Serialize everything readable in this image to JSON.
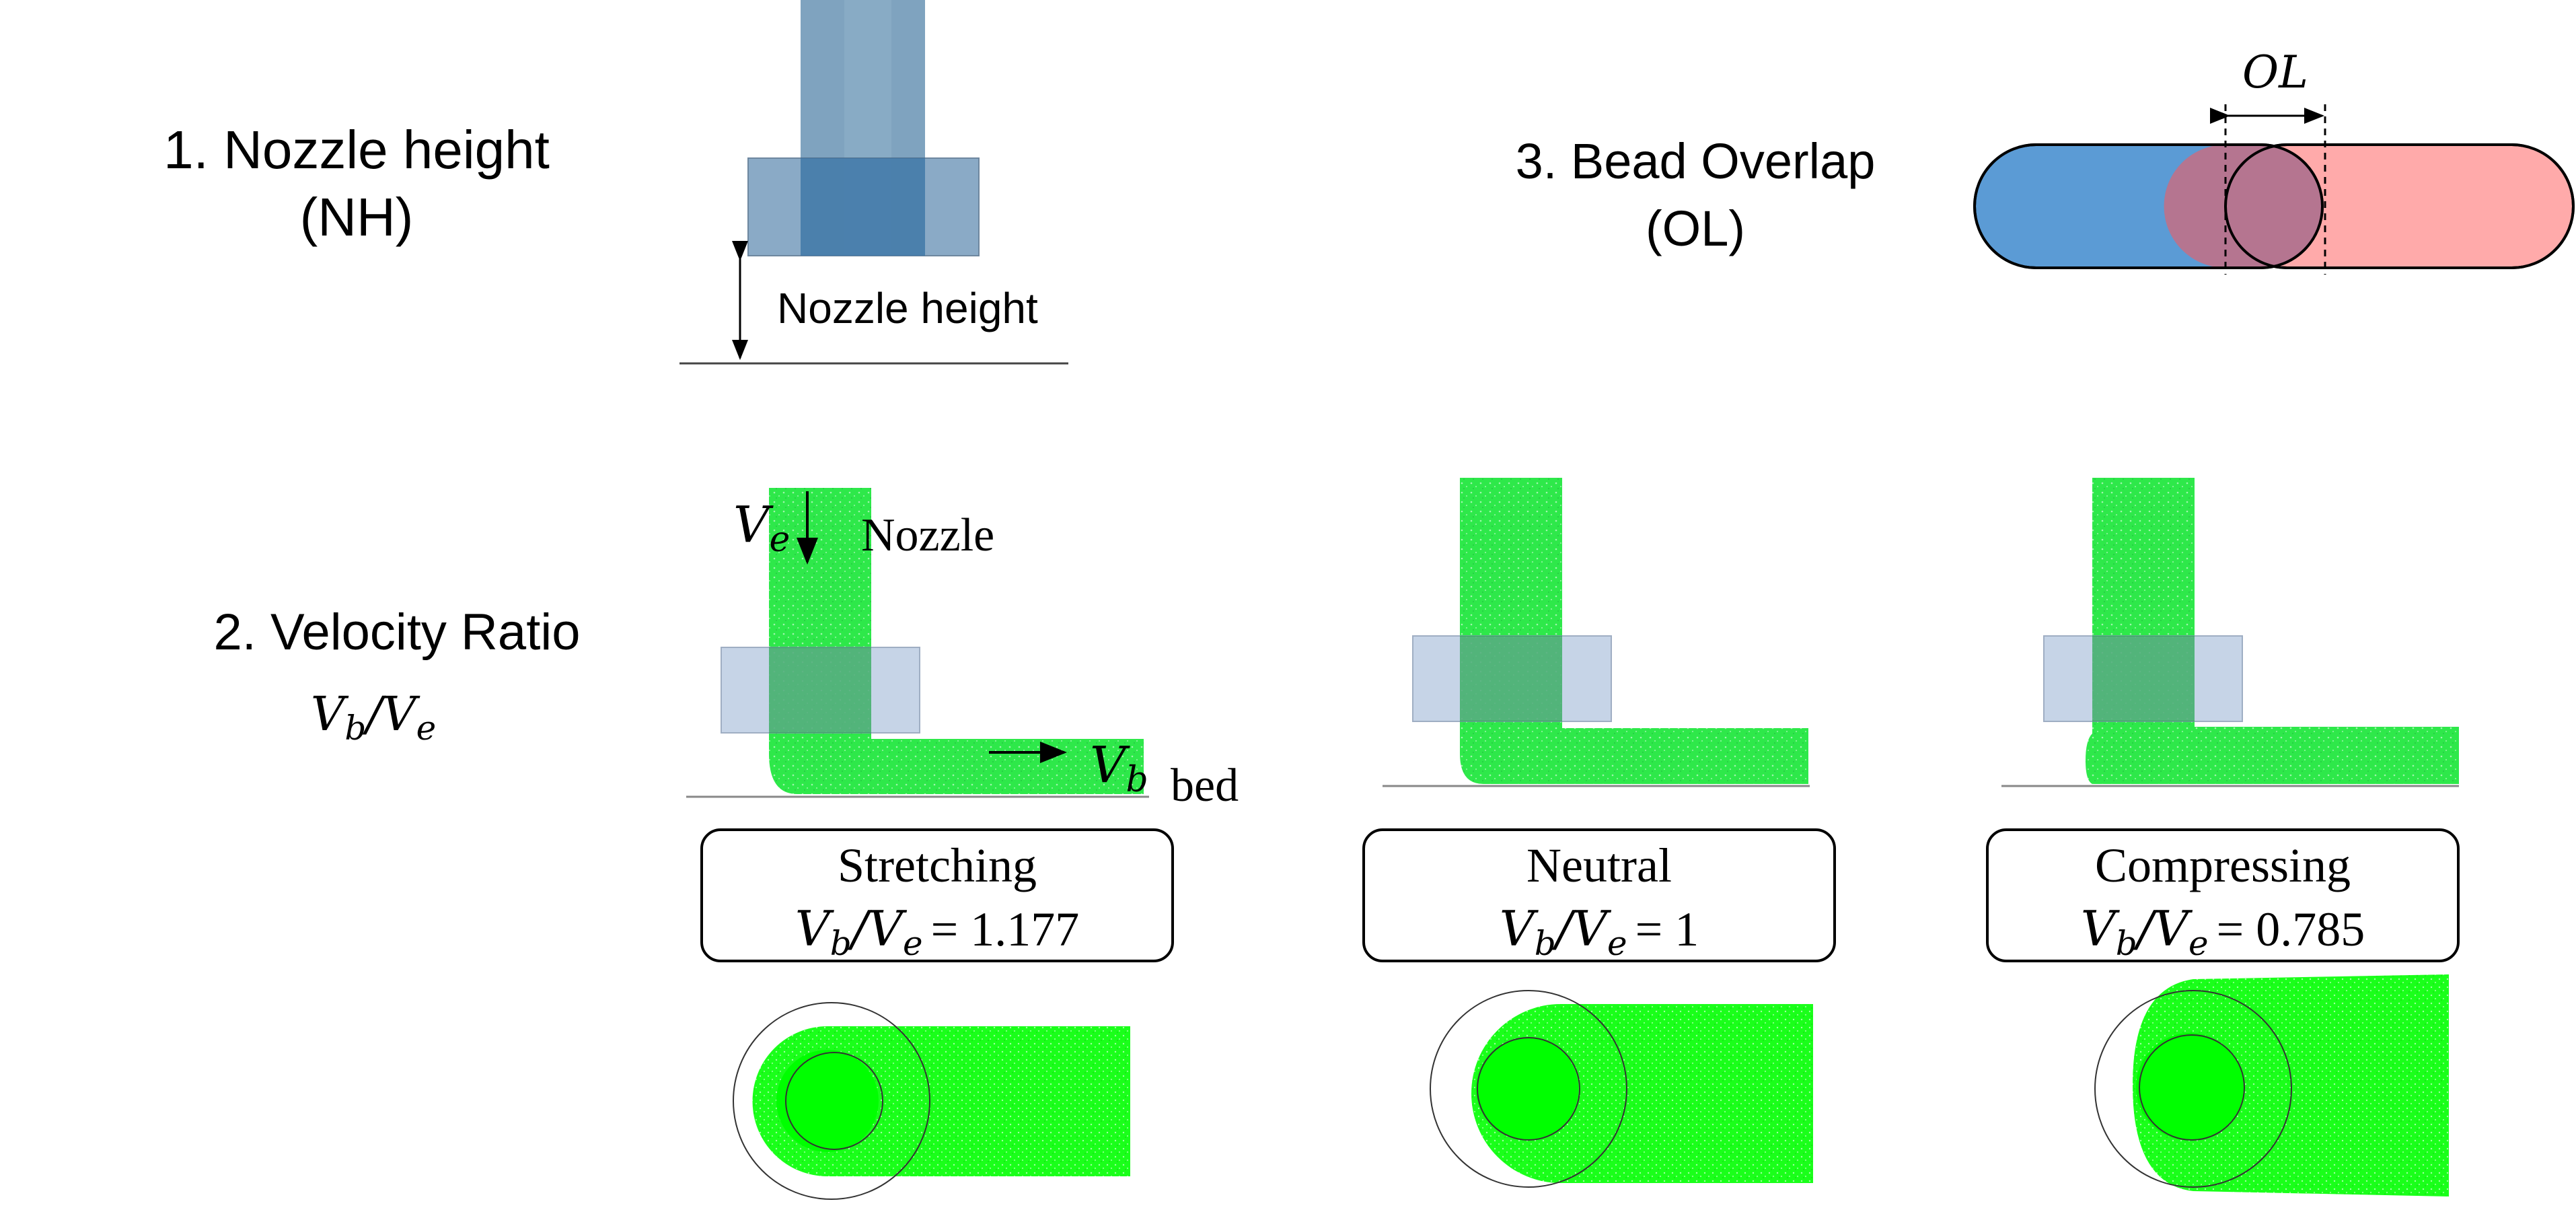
{
  "params": {
    "nh": {
      "title": "1. Nozzle height",
      "abbr": "(NH)",
      "dim_label": "Nozzle height"
    },
    "ol": {
      "title": "3. Bead Overlap",
      "abbr": "(OL)",
      "dim_label": "OL"
    },
    "vr": {
      "title": "2. Velocity Ratio",
      "ratio_label": "Vₕ/Vₑ"
    }
  },
  "labels": {
    "ve": "V",
    "ve_sub": "e",
    "vb": "V",
    "vb_sub": "b",
    "nozzle": "Nozzle",
    "bed": "bed",
    "ratio_b": "V",
    "ratio_b_sub": "b",
    "ratio_slash": "/",
    "ratio_e": "V",
    "ratio_e_sub": "e"
  },
  "cases": [
    {
      "name": "Stretching",
      "ratio_value": "= 1.177"
    },
    {
      "name": "Neutral",
      "ratio_value": "= 1"
    },
    {
      "name": "Compressing",
      "ratio_value": "= 0.785"
    }
  ],
  "colors": {
    "nozzle_blue": "#7fa3bf",
    "nozzle_light": "#c8d4e6",
    "filament_green": "#2ee84a",
    "bright_green": "#00ff00",
    "bead_blue": "#5b9bd5",
    "bead_pink": "#ffaaaa",
    "overlap": "#b57590"
  }
}
